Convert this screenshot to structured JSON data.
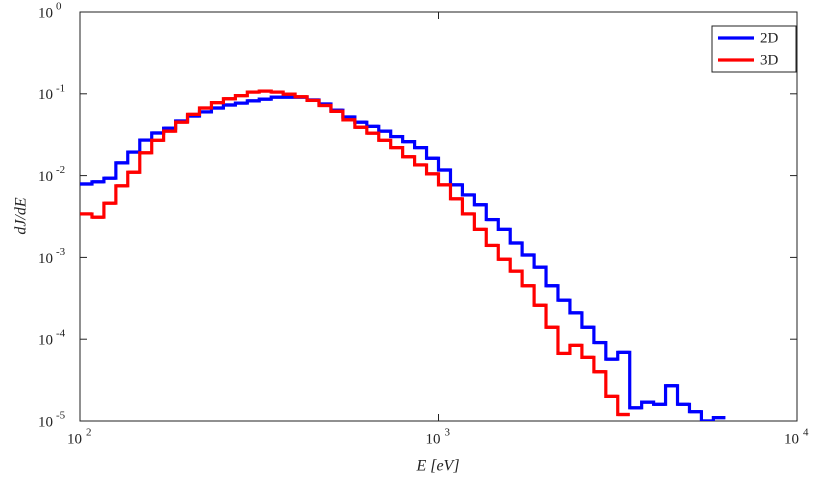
{
  "chart_data": {
    "type": "histogram-stairs",
    "xlabel": "E [eV]",
    "ylabel": "dJ/dE",
    "xscale": "log",
    "yscale": "log",
    "xlim": [
      100,
      10000
    ],
    "ylim": [
      1e-05,
      1
    ],
    "xticks": [
      {
        "value": 100,
        "label": "10",
        "exponent": "2"
      },
      {
        "value": 1000,
        "label": "10",
        "exponent": "3"
      },
      {
        "value": 10000,
        "label": "10",
        "exponent": "4"
      }
    ],
    "yticks": [
      {
        "value": 1e-05,
        "label": "10",
        "exponent": "-5"
      },
      {
        "value": 0.0001,
        "label": "10",
        "exponent": "-4"
      },
      {
        "value": 0.001,
        "label": "10",
        "exponent": "-3"
      },
      {
        "value": 0.01,
        "label": "10",
        "exponent": "-2"
      },
      {
        "value": 0.1,
        "label": "10",
        "exponent": "-1"
      },
      {
        "value": 1,
        "label": "10",
        "exponent": "0"
      }
    ],
    "legend": "upper right",
    "series": [
      {
        "name": "2D",
        "color": "#0000ff",
        "bins": [
          100,
          108,
          116.6,
          125.9,
          135.9,
          146.8,
          158.5,
          171.1,
          184.8,
          199.5,
          215.4,
          232.6,
          251.2,
          271.3,
          292.9,
          316.2,
          341.5,
          368.7,
          398.1,
          429.9,
          464.2,
          501.2,
          541.2,
          584.4,
          631,
          681.3,
          735.6,
          794.3,
          857.7,
          926.1,
          1000,
          1080,
          1166,
          1259,
          1359,
          1468,
          1585,
          1711,
          1848,
          1995,
          2154,
          2326,
          2512,
          2713,
          2929,
          3162,
          3415,
          3687,
          3981,
          4299,
          4642,
          5012,
          5412,
          5844,
          6310
        ],
        "values": [
          0.0079,
          0.0084,
          0.0093,
          0.0143,
          0.0194,
          0.0272,
          0.0332,
          0.038,
          0.0465,
          0.0535,
          0.06,
          0.067,
          0.073,
          0.077,
          0.082,
          0.086,
          0.091,
          0.091,
          0.091,
          0.084,
          0.075,
          0.063,
          0.052,
          0.045,
          0.04,
          0.035,
          0.03,
          0.026,
          0.022,
          0.0163,
          0.0117,
          0.0077,
          0.0058,
          0.0044,
          0.0029,
          0.0022,
          0.0015,
          0.00107,
          0.00076,
          0.00045,
          0.0003,
          0.00021,
          0.00014,
          9.1e-05,
          5.7e-05,
          6.9e-05,
          1.45e-05,
          1.7e-05,
          1.6e-05,
          2.7e-05,
          1.6e-05,
          1.3e-05,
          1e-05,
          1.1e-05
        ]
      },
      {
        "name": "3D",
        "color": "#ff0000",
        "bins": [
          100,
          108,
          116.6,
          125.9,
          135.9,
          146.8,
          158.5,
          171.1,
          184.8,
          199.5,
          215.4,
          232.6,
          251.2,
          271.3,
          292.9,
          316.2,
          341.5,
          368.7,
          398.1,
          429.9,
          464.2,
          501.2,
          541.2,
          584.4,
          631,
          681.3,
          735.6,
          794.3,
          857.7,
          926.1,
          1000,
          1080,
          1166,
          1259,
          1359,
          1468,
          1585,
          1711,
          1848,
          1995,
          2154,
          2326,
          2512,
          2713,
          2929,
          3162,
          3415
        ],
        "values": [
          0.0034,
          0.0031,
          0.0046,
          0.0075,
          0.011,
          0.019,
          0.027,
          0.035,
          0.045,
          0.056,
          0.067,
          0.078,
          0.087,
          0.095,
          0.105,
          0.108,
          0.105,
          0.099,
          0.092,
          0.083,
          0.072,
          0.061,
          0.048,
          0.039,
          0.033,
          0.027,
          0.022,
          0.017,
          0.0135,
          0.0105,
          0.0077,
          0.0052,
          0.0034,
          0.0022,
          0.0014,
          0.00095,
          0.00068,
          0.00045,
          0.00026,
          0.00014,
          6.7e-05,
          8.4e-05,
          6e-05,
          4e-05,
          2e-05,
          1.2e-05
        ]
      }
    ]
  }
}
